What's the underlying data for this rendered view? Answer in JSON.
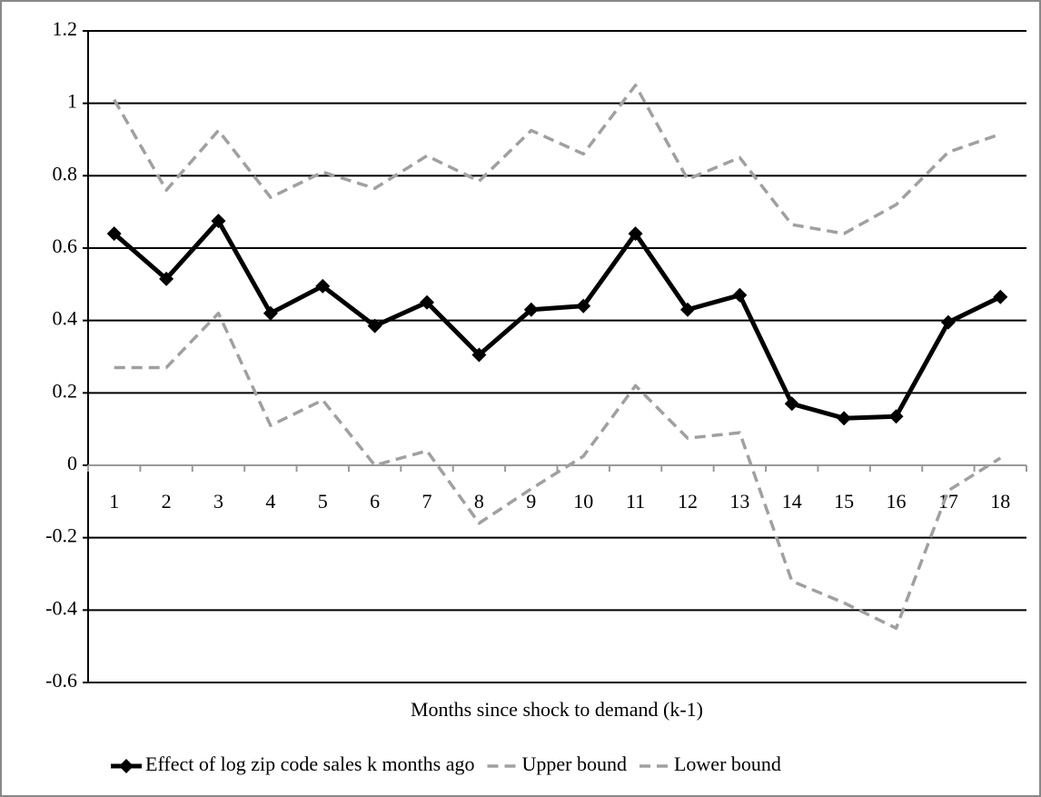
{
  "chart_data": {
    "type": "line",
    "x_label": "Months since shock to demand (k-1)",
    "categories": [
      "1",
      "2",
      "3",
      "4",
      "5",
      "6",
      "7",
      "8",
      "9",
      "10",
      "11",
      "12",
      "13",
      "14",
      "15",
      "16",
      "17",
      "18"
    ],
    "series": [
      {
        "name": "Effect of log zip code sales k months ago",
        "color": "#000000",
        "line_style": "solid",
        "marker": "diamond",
        "values": [
          0.64,
          0.515,
          0.675,
          0.42,
          0.495,
          0.385,
          0.45,
          0.305,
          0.43,
          0.44,
          0.64,
          0.43,
          0.47,
          0.17,
          0.13,
          0.135,
          0.395,
          0.465
        ]
      },
      {
        "name": "Upper bound",
        "color": "#a0a0a0",
        "line_style": "dashed",
        "marker": "none",
        "values": [
          1.01,
          0.76,
          0.925,
          0.74,
          0.81,
          0.765,
          0.855,
          0.785,
          0.925,
          0.86,
          1.05,
          0.79,
          0.85,
          0.665,
          0.64,
          0.72,
          0.865,
          0.915
        ]
      },
      {
        "name": "Lower bound",
        "color": "#a0a0a0",
        "line_style": "dashed",
        "marker": "none",
        "values": [
          0.27,
          0.27,
          0.42,
          0.11,
          0.18,
          0.0,
          0.04,
          -0.16,
          -0.065,
          0.025,
          0.22,
          0.075,
          0.09,
          -0.32,
          -0.38,
          -0.45,
          -0.07,
          0.02
        ]
      }
    ],
    "ylim": [
      -0.6,
      1.2
    ],
    "yticks": [
      -0.6,
      -0.4,
      -0.2,
      0,
      0.2,
      0.4,
      0.6,
      0.8,
      1,
      1.2
    ],
    "grid": true,
    "legend": "bottom"
  }
}
